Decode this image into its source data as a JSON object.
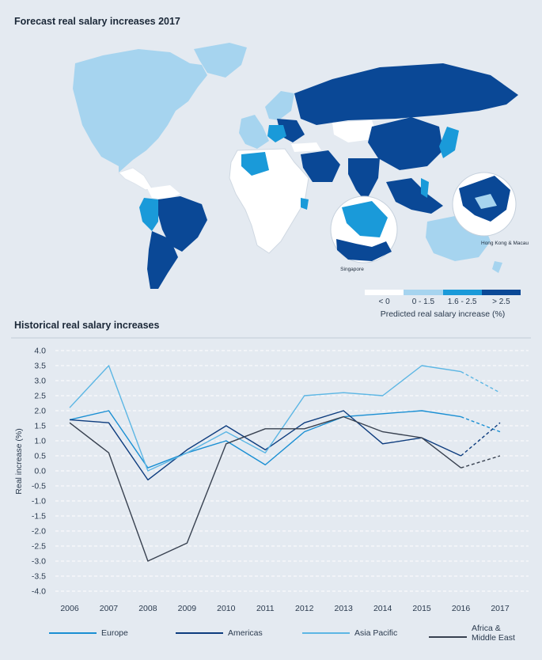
{
  "map": {
    "title": "Forecast real salary increases 2017",
    "inset_hk_label": "Hong Kong & Macau",
    "inset_sg_label": "Singapore",
    "legend": {
      "bins": [
        "< 0",
        "0 - 1.5",
        "1.6 - 2.5",
        "> 2.5"
      ],
      "colors": [
        "#ffffff",
        "#a6d4ef",
        "#1a9ad9",
        "#0a4896"
      ],
      "caption": "Predicted real salary increase (%)"
    }
  },
  "chart_data": {
    "type": "line",
    "title": "Historical real salary increases",
    "ylabel": "Real increase (%)",
    "xlabel": "",
    "x": [
      "2006",
      "2007",
      "2008",
      "2009",
      "2010",
      "2011",
      "2012",
      "2013",
      "2014",
      "2015",
      "2016",
      "2017"
    ],
    "ylim": [
      -4.0,
      4.0
    ],
    "ytick_step": 0.5,
    "ytick_labels": [
      "4.0",
      "3.5",
      "3.0",
      "2.5",
      "2.0",
      "1.5",
      "1.0",
      "0.5",
      "0.0",
      "-0.5",
      "-1.0",
      "-1.5",
      "-2.0",
      "-2.5",
      "-3.0",
      "-3.5",
      "-4.0"
    ],
    "grid": "horizontal-dashed",
    "legend_position": "bottom",
    "forecast_from_index": 10,
    "series": [
      {
        "name": "Europe",
        "color": "#1a8fd3",
        "values": [
          1.7,
          2.0,
          0.1,
          0.6,
          1.0,
          0.2,
          1.3,
          1.8,
          1.9,
          2.0,
          1.8,
          1.3
        ]
      },
      {
        "name": "Americas",
        "color": "#0d3c7e",
        "values": [
          1.7,
          1.6,
          -0.3,
          0.7,
          1.5,
          0.7,
          1.6,
          2.0,
          0.9,
          1.1,
          0.5,
          1.6
        ]
      },
      {
        "name": "Asia Pacific",
        "color": "#5cb6e4",
        "values": [
          2.1,
          3.5,
          0.0,
          0.6,
          1.3,
          0.6,
          2.5,
          2.6,
          2.5,
          3.5,
          3.3,
          2.6
        ]
      },
      {
        "name": "Africa & Middle East",
        "color": "#384150",
        "values": [
          1.6,
          0.6,
          -3.0,
          -2.4,
          0.9,
          1.4,
          1.4,
          1.8,
          1.3,
          1.1,
          0.1,
          0.5
        ]
      }
    ]
  }
}
